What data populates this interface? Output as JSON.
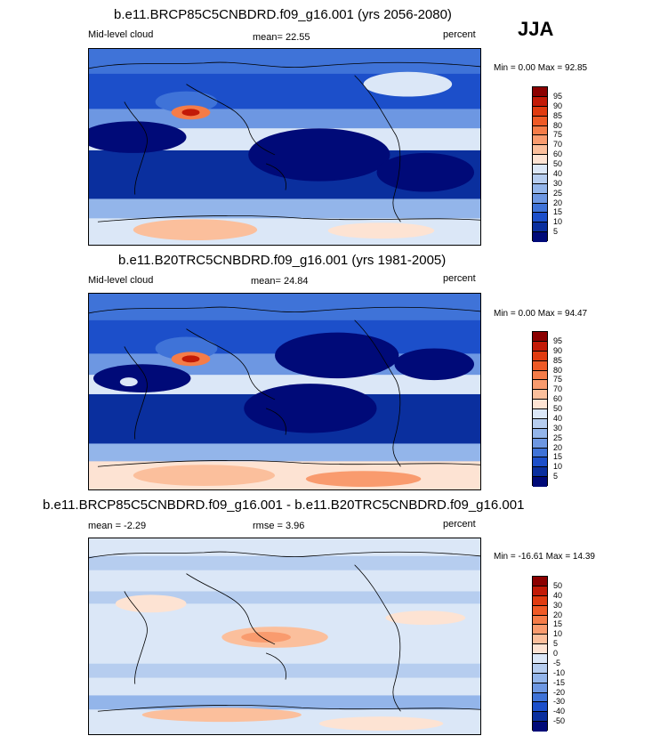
{
  "season": "JJA",
  "panels": [
    {
      "title": "b.e11.BRCP85C5CNBDRD.f09_g16.001 (yrs 2056-2080)",
      "left_label": "Mid-level cloud",
      "mean_text": "mean=  22.55",
      "units": "percent",
      "minmax": "Min =   0.00 Max =  92.85",
      "colorbar_labels": [
        "95",
        "90",
        "85",
        "80",
        "75",
        "70",
        "60",
        "50",
        "40",
        "30",
        "25",
        "20",
        "15",
        "10",
        "5"
      ],
      "colorbar_colors": [
        "#8b0000",
        "#c21a07",
        "#e03b10",
        "#ef5a26",
        "#f57c48",
        "#f99b6e",
        "#fbbf9c",
        "#fde3d3",
        "#dbe7f7",
        "#b6cdef",
        "#93b5ea",
        "#6d97e2",
        "#3f73d8",
        "#1c4fca",
        "#0a2f9e",
        "#000a78"
      ]
    },
    {
      "title": "b.e11.B20TRC5CNBDRD.f09_g16.001 (yrs 1981-2005)",
      "left_label": "Mid-level cloud",
      "mean_text": "mean=  24.84",
      "units": "percent",
      "minmax": "Min =   0.00 Max =  94.47",
      "colorbar_labels": [
        "95",
        "90",
        "85",
        "80",
        "75",
        "70",
        "60",
        "50",
        "40",
        "30",
        "25",
        "20",
        "15",
        "10",
        "5"
      ],
      "colorbar_colors": [
        "#8b0000",
        "#c21a07",
        "#e03b10",
        "#ef5a26",
        "#f57c48",
        "#f99b6e",
        "#fbbf9c",
        "#fde3d3",
        "#dbe7f7",
        "#b6cdef",
        "#93b5ea",
        "#6d97e2",
        "#3f73d8",
        "#1c4fca",
        "#0a2f9e",
        "#000a78"
      ]
    },
    {
      "title": "b.e11.BRCP85C5CNBDRD.f09_g16.001 - b.e11.B20TRC5CNBDRD.f09_g16.001",
      "left_label": "mean =  -2.29",
      "mean_text": "rmse =   3.96",
      "units": "percent",
      "minmax": "Min = -16.61 Max =  14.39",
      "colorbar_labels": [
        "50",
        "40",
        "30",
        "20",
        "15",
        "10",
        "5",
        "0",
        "-5",
        "-10",
        "-15",
        "-20",
        "-30",
        "-40",
        "-50"
      ],
      "colorbar_colors": [
        "#8b0000",
        "#c21a07",
        "#e03b10",
        "#ef5a26",
        "#f57c48",
        "#f99b6e",
        "#fbbf9c",
        "#fde3d3",
        "#dbe7f7",
        "#b6cdef",
        "#93b5ea",
        "#6d97e2",
        "#3f73d8",
        "#1c4fca",
        "#0a2f9e",
        "#000a78"
      ]
    }
  ]
}
